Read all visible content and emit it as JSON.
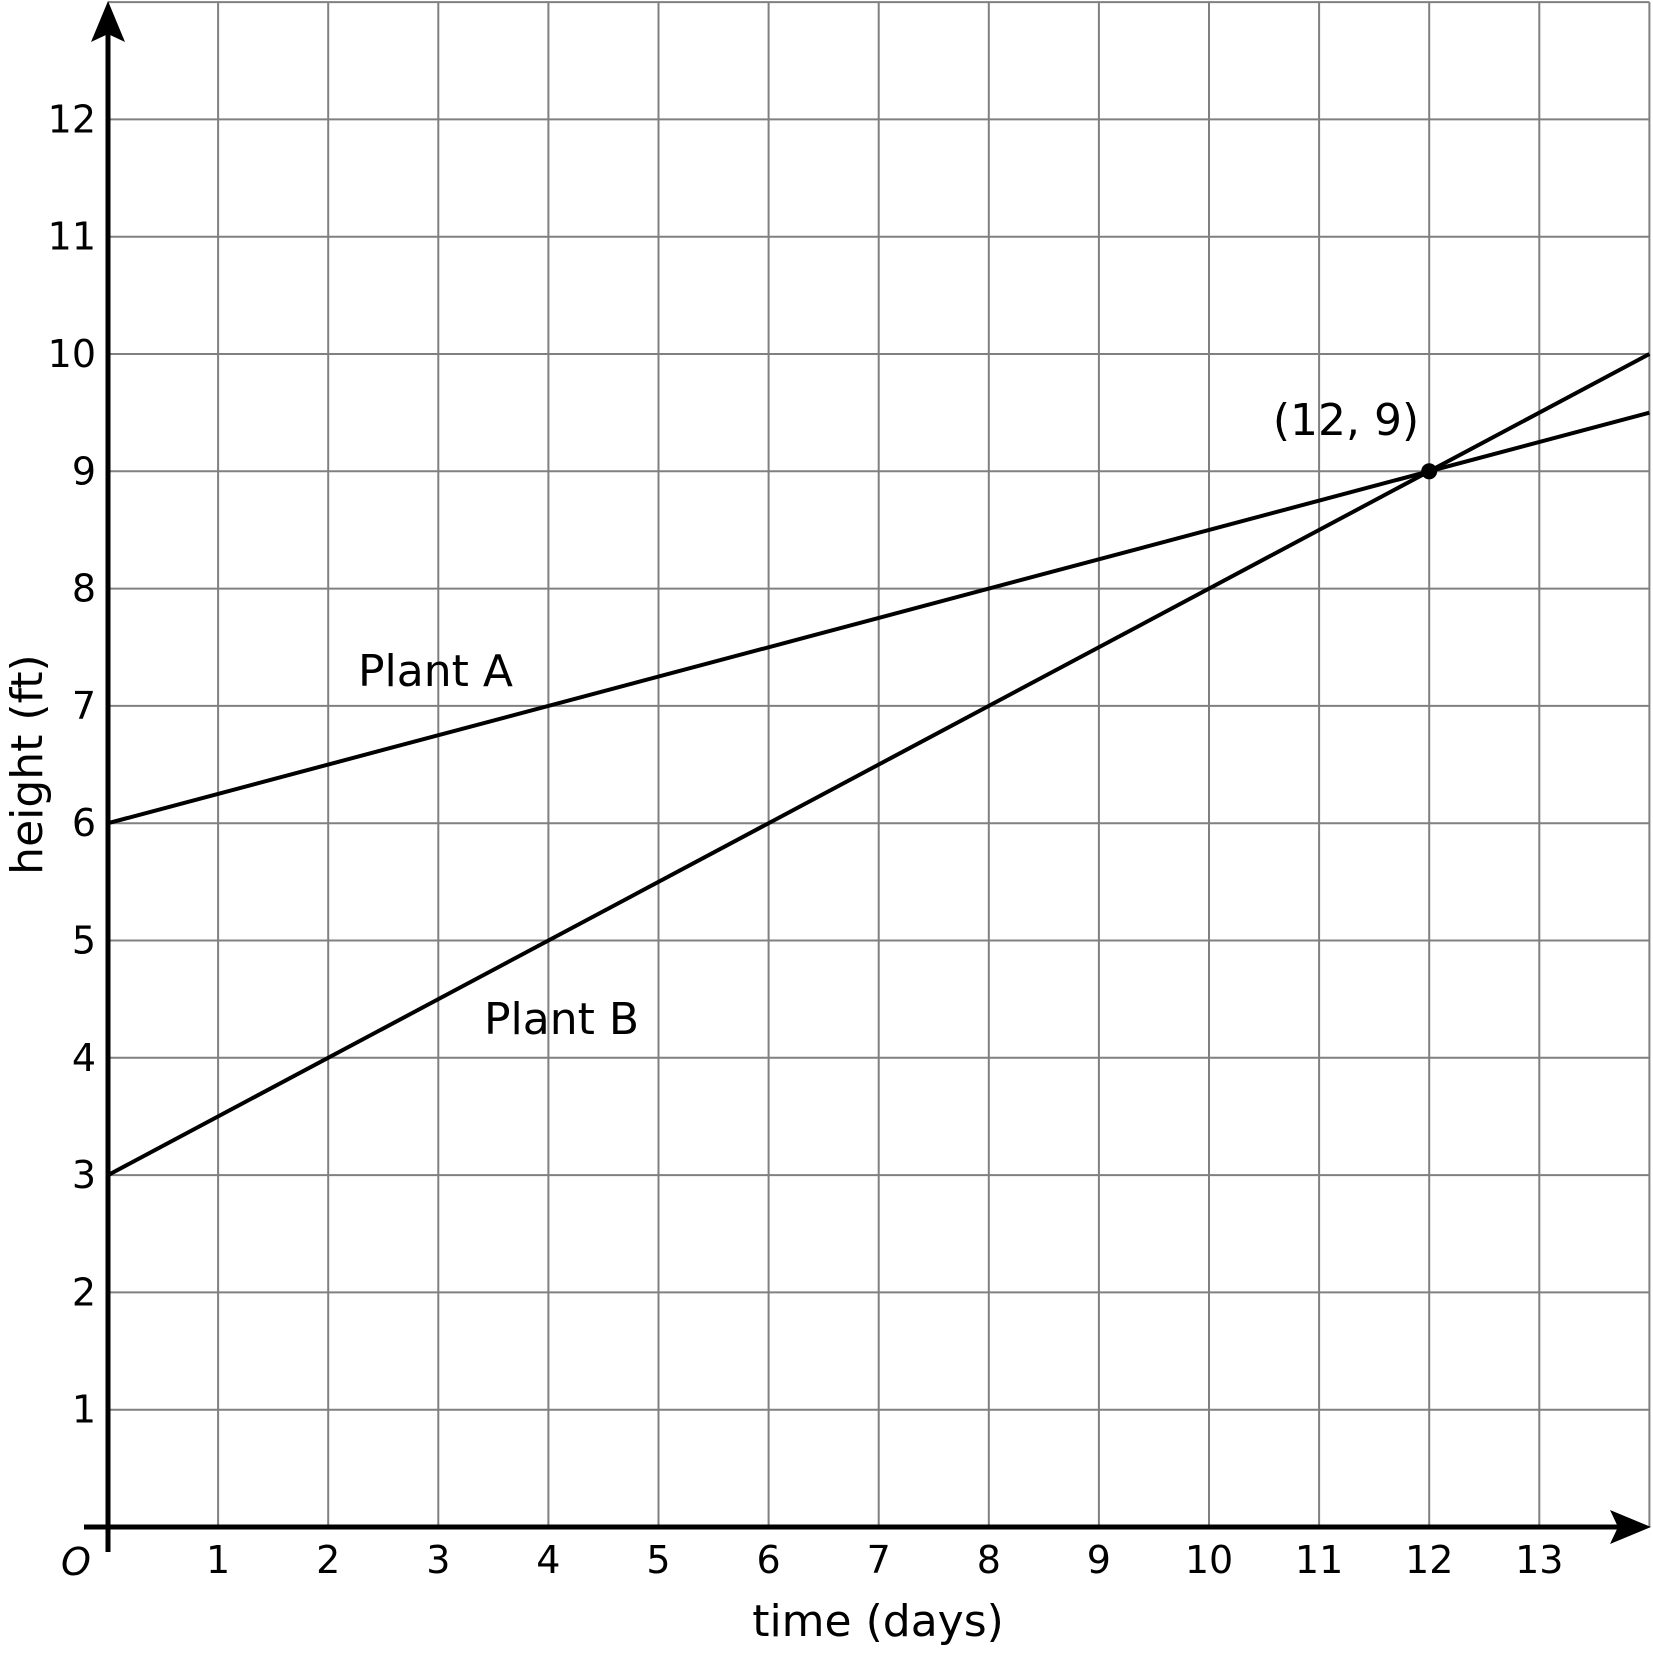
{
  "chart_data": {
    "type": "line",
    "xlabel": "time (days)",
    "ylabel": "height (ft)",
    "origin_label": "O",
    "xlim": [
      0,
      14
    ],
    "ylim": [
      0,
      13
    ],
    "x_ticks": [
      1,
      2,
      3,
      4,
      5,
      6,
      7,
      8,
      9,
      10,
      11,
      12,
      13
    ],
    "y_ticks": [
      1,
      2,
      3,
      4,
      5,
      6,
      7,
      8,
      9,
      10,
      11,
      12
    ],
    "grid": true,
    "series": [
      {
        "name": "Plant A",
        "x": [
          0,
          14
        ],
        "y": [
          6,
          9.5
        ]
      },
      {
        "name": "Plant B",
        "x": [
          0,
          14
        ],
        "y": [
          3,
          10
        ]
      }
    ],
    "point": {
      "x": 12,
      "y": 9,
      "label": "(12, 9)"
    },
    "colors": {
      "grid": "#808080",
      "line": "#000000"
    }
  }
}
